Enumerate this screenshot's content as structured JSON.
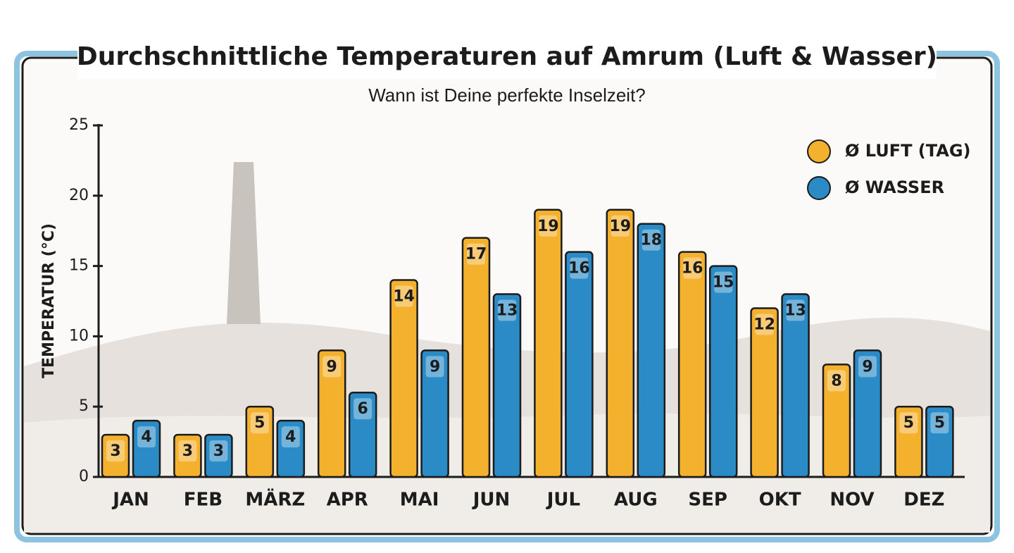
{
  "chart_data": {
    "type": "bar",
    "title": "Durchschnittliche Temperaturen auf Amrum (Luft & Wasser)",
    "subtitle": "Wann ist Deine perfekte Inselzeit?",
    "y_label": "TEMPERATUR (°C)",
    "categories": [
      "JAN",
      "FEB",
      "MÄRZ",
      "APR",
      "MAI",
      "JUN",
      "JUL",
      "AUG",
      "SEP",
      "OKT",
      "NOV",
      "DEZ"
    ],
    "series": [
      {
        "name": "Ø LUFT (TAG)",
        "color": "#f4b12e",
        "values": [
          3,
          3,
          5,
          9,
          14,
          17,
          19,
          19,
          16,
          12,
          8,
          5
        ]
      },
      {
        "name": "Ø WASSER",
        "color": "#2a8bc6",
        "values": [
          4,
          3,
          4,
          6,
          9,
          13,
          16,
          18,
          15,
          13,
          9,
          5
        ]
      }
    ],
    "ylim": [
      0,
      25
    ],
    "yticks": [
      0,
      5,
      10,
      15,
      20,
      25
    ],
    "legend": "top-right"
  }
}
